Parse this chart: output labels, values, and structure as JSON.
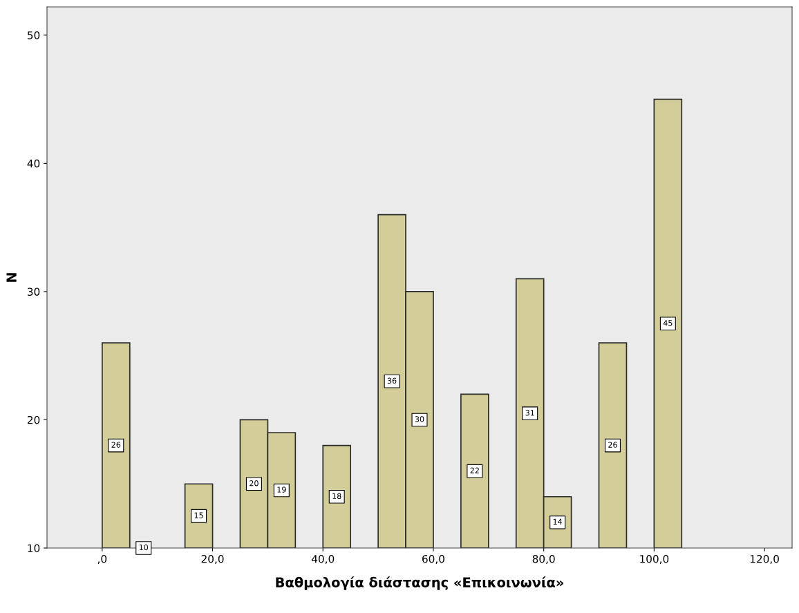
{
  "chart_data": {
    "type": "histogram",
    "xlabel": "Βαθμολογία διάστασης «Επικοινωνία»",
    "ylabel": "N",
    "bins": [
      0,
      5,
      10,
      15,
      20,
      25,
      30,
      35,
      40,
      45,
      50,
      55,
      60,
      65,
      70,
      75,
      80,
      85,
      90,
      95,
      100,
      105
    ],
    "values": [
      26,
      10,
      null,
      15,
      null,
      20,
      19,
      null,
      18,
      null,
      36,
      30,
      null,
      22,
      null,
      31,
      14,
      null,
      26,
      null,
      45
    ],
    "color": "#d3ce99",
    "data_labels": true,
    "grid": false,
    "xlim": [
      -10,
      125
    ],
    "ylim": [
      10,
      52.2
    ],
    "xticks": [
      {
        "value": 0,
        "label": ",0"
      },
      {
        "value": 20,
        "label": "20,0"
      },
      {
        "value": 40,
        "label": "40,0"
      },
      {
        "value": 60,
        "label": "60,0"
      },
      {
        "value": 80,
        "label": "80,0"
      },
      {
        "value": 100,
        "label": "100,0"
      },
      {
        "value": 120,
        "label": "120,0"
      }
    ],
    "yticks": [
      10,
      20,
      30,
      40,
      50
    ]
  }
}
